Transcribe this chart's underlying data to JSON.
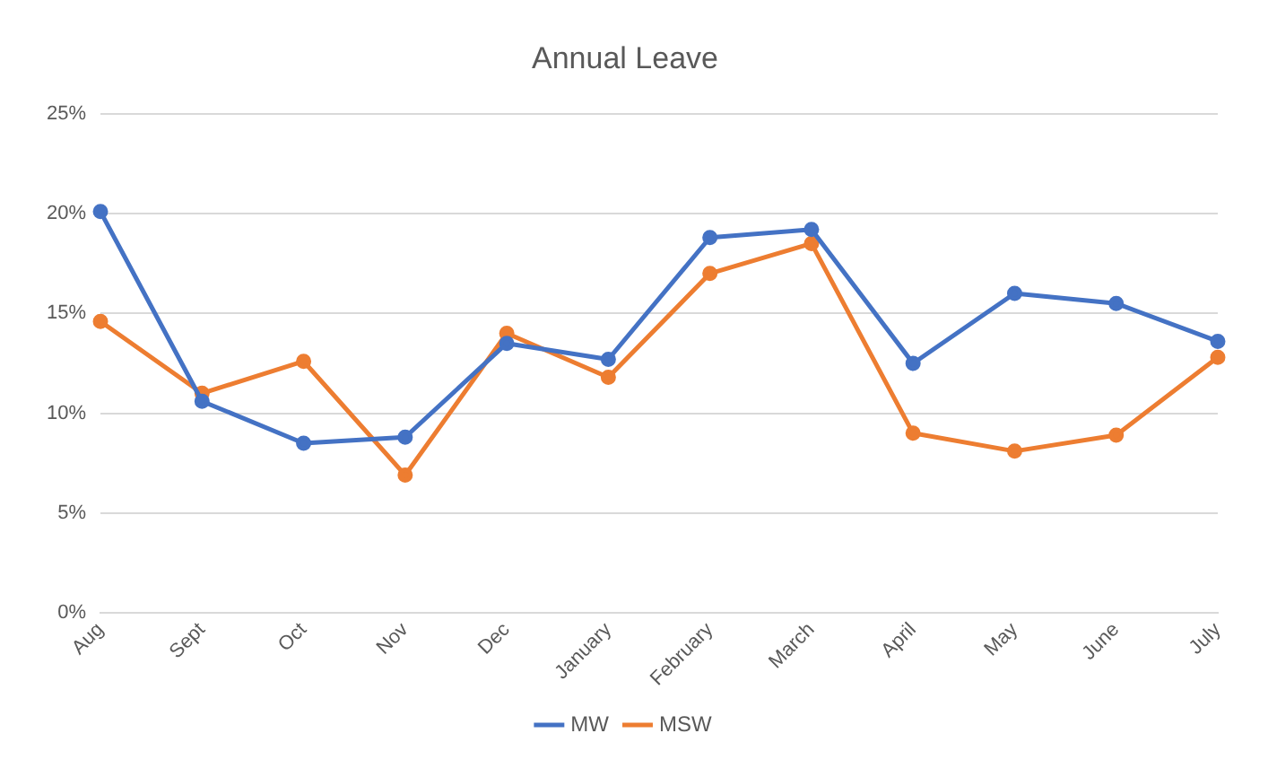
{
  "chart_data": {
    "type": "line",
    "title": "Annual Leave",
    "categories": [
      "Aug",
      "Sept",
      "Oct",
      "Nov",
      "Dec",
      "January",
      "February",
      "March",
      "April",
      "May",
      "June",
      "July"
    ],
    "series": [
      {
        "name": "MW",
        "color": "#4472c4",
        "values": [
          20.1,
          10.6,
          8.5,
          8.8,
          13.5,
          12.7,
          18.8,
          19.2,
          12.5,
          16.0,
          15.5,
          13.6
        ]
      },
      {
        "name": "MSW",
        "color": "#ed7d31",
        "values": [
          14.6,
          11.0,
          12.6,
          6.9,
          14.0,
          11.8,
          17.0,
          18.5,
          9.0,
          8.1,
          8.9,
          12.8
        ]
      }
    ],
    "ylim": [
      0,
      25
    ],
    "yticks": [
      {
        "value": 0,
        "label": "0%"
      },
      {
        "value": 5,
        "label": "5%"
      },
      {
        "value": 10,
        "label": "10%"
      },
      {
        "value": 15,
        "label": "15%"
      },
      {
        "value": 20,
        "label": "20%"
      },
      {
        "value": 25,
        "label": "25%"
      }
    ],
    "grid": "y",
    "legend": "bottom",
    "marker": "circle",
    "line_style": "solid"
  }
}
